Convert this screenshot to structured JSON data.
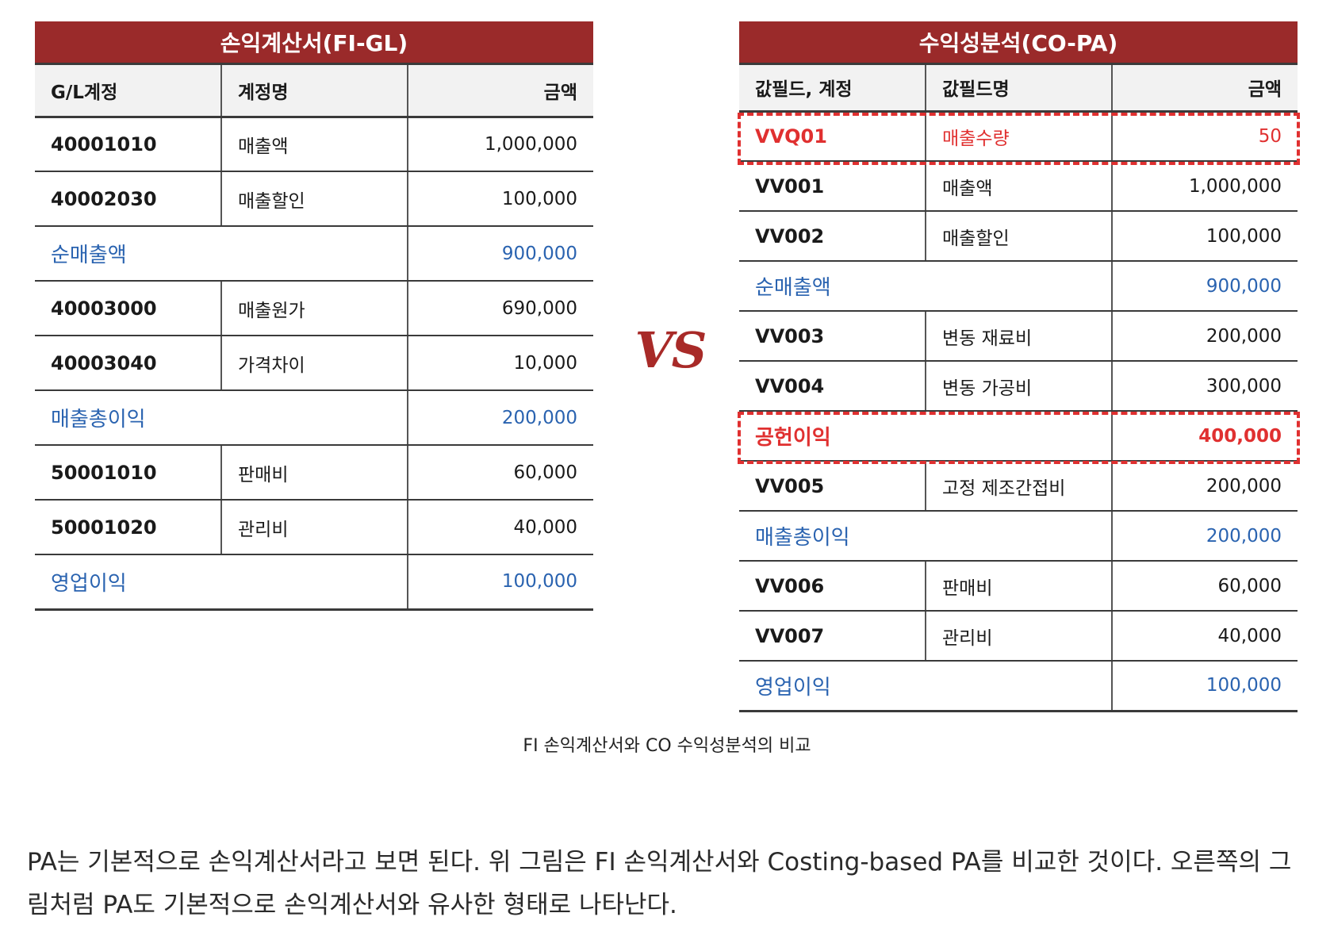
{
  "left_table": {
    "title": "손익계산서(FI-GL)",
    "headers": [
      "G/L계정",
      "계정명",
      "금액"
    ],
    "rows": [
      {
        "code": "40001010",
        "name": "매출액",
        "amount": "1,000,000"
      },
      {
        "code": "40002030",
        "name": "매출할인",
        "amount": "100,000"
      },
      {
        "subtotal": "순매출액",
        "amount": "900,000"
      },
      {
        "code": "40003000",
        "name": "매출원가",
        "amount": "690,000"
      },
      {
        "code": "40003040",
        "name": "가격차이",
        "amount": "10,000"
      },
      {
        "subtotal": "매출총이익",
        "amount": "200,000"
      },
      {
        "code": "50001010",
        "name": "판매비",
        "amount": "60,000"
      },
      {
        "code": "50001020",
        "name": "관리비",
        "amount": "40,000"
      },
      {
        "subtotal": "영업이익",
        "amount": "100,000"
      }
    ]
  },
  "vs_label": "VS",
  "right_table": {
    "title": "수익성분석(CO-PA)",
    "headers": [
      "값필드, 계정",
      "값필드명",
      "금액"
    ],
    "rows": [
      {
        "code": "VVQ01",
        "name": "매출수량",
        "amount": "50",
        "highlight": true
      },
      {
        "code": "VV001",
        "name": "매출액",
        "amount": "1,000,000"
      },
      {
        "code": "VV002",
        "name": "매출할인",
        "amount": "100,000"
      },
      {
        "subtotal": "순매출액",
        "amount": "900,000"
      },
      {
        "code": "VV003",
        "name": "변동 재료비",
        "amount": "200,000"
      },
      {
        "code": "VV004",
        "name": "변동 가공비",
        "amount": "300,000"
      },
      {
        "subtotal": "공헌이익",
        "amount": "400,000",
        "highlight": true
      },
      {
        "code": "VV005",
        "name": "고정 제조간접비",
        "amount": "200,000"
      },
      {
        "subtotal": "매출총이익",
        "amount": "200,000"
      },
      {
        "code": "VV006",
        "name": "판매비",
        "amount": "60,000"
      },
      {
        "code": "VV007",
        "name": "관리비",
        "amount": "40,000"
      },
      {
        "subtotal": "영업이익",
        "amount": "100,000"
      }
    ]
  },
  "caption": "FI 손익계산서와 CO 수익성분석의 비교",
  "paragraph": "PA는 기본적으로 손익계산서라고 보면 된다. 위 그림은 FI 손익계산서와 Costing-based PA를 비교한 것이다. 오른쪽의 그림처럼 PA도 기본적으로 손익계산서와 유사한 형태로 나타난다.",
  "colors": {
    "header_red": "#9a2a2a",
    "subtotal_blue": "#2a63b0",
    "highlight_red": "#e03030"
  }
}
